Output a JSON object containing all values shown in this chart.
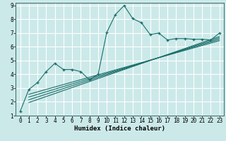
{
  "xlabel": "Humidex (Indice chaleur)",
  "ylabel": "",
  "bg_color": "#cce9e9",
  "grid_color": "#ffffff",
  "line_color": "#1a6e6a",
  "xlim": [
    -0.5,
    23.5
  ],
  "ylim": [
    1,
    9.2
  ],
  "xticks": [
    0,
    1,
    2,
    3,
    4,
    5,
    6,
    7,
    8,
    9,
    10,
    11,
    12,
    13,
    14,
    15,
    16,
    17,
    18,
    19,
    20,
    21,
    22,
    23
  ],
  "yticks": [
    1,
    2,
    3,
    4,
    5,
    6,
    7,
    8,
    9
  ],
  "series": [
    [
      0,
      1.3
    ],
    [
      1,
      2.9
    ],
    [
      2,
      3.4
    ],
    [
      3,
      4.2
    ],
    [
      4,
      4.8
    ],
    [
      5,
      4.35
    ],
    [
      6,
      4.35
    ],
    [
      7,
      4.2
    ],
    [
      8,
      3.6
    ],
    [
      9,
      4.0
    ],
    [
      10,
      7.05
    ],
    [
      11,
      8.35
    ],
    [
      12,
      9.0
    ],
    [
      13,
      8.05
    ],
    [
      14,
      7.75
    ],
    [
      15,
      6.9
    ],
    [
      16,
      7.0
    ],
    [
      17,
      6.5
    ],
    [
      18,
      6.6
    ],
    [
      19,
      6.6
    ],
    [
      20,
      6.55
    ],
    [
      21,
      6.55
    ],
    [
      22,
      6.5
    ],
    [
      23,
      7.0
    ]
  ],
  "regression_lines": [
    {
      "x_start": 1,
      "y_start": 2.55,
      "x_end": 23,
      "y_end": 6.45
    },
    {
      "x_start": 1,
      "y_start": 2.35,
      "x_end": 23,
      "y_end": 6.55
    },
    {
      "x_start": 1,
      "y_start": 2.15,
      "x_end": 23,
      "y_end": 6.65
    },
    {
      "x_start": 1,
      "y_start": 1.95,
      "x_end": 23,
      "y_end": 6.75
    }
  ],
  "tick_fontsize": 5.5,
  "xlabel_fontsize": 6.5,
  "xlabel_bold": true
}
